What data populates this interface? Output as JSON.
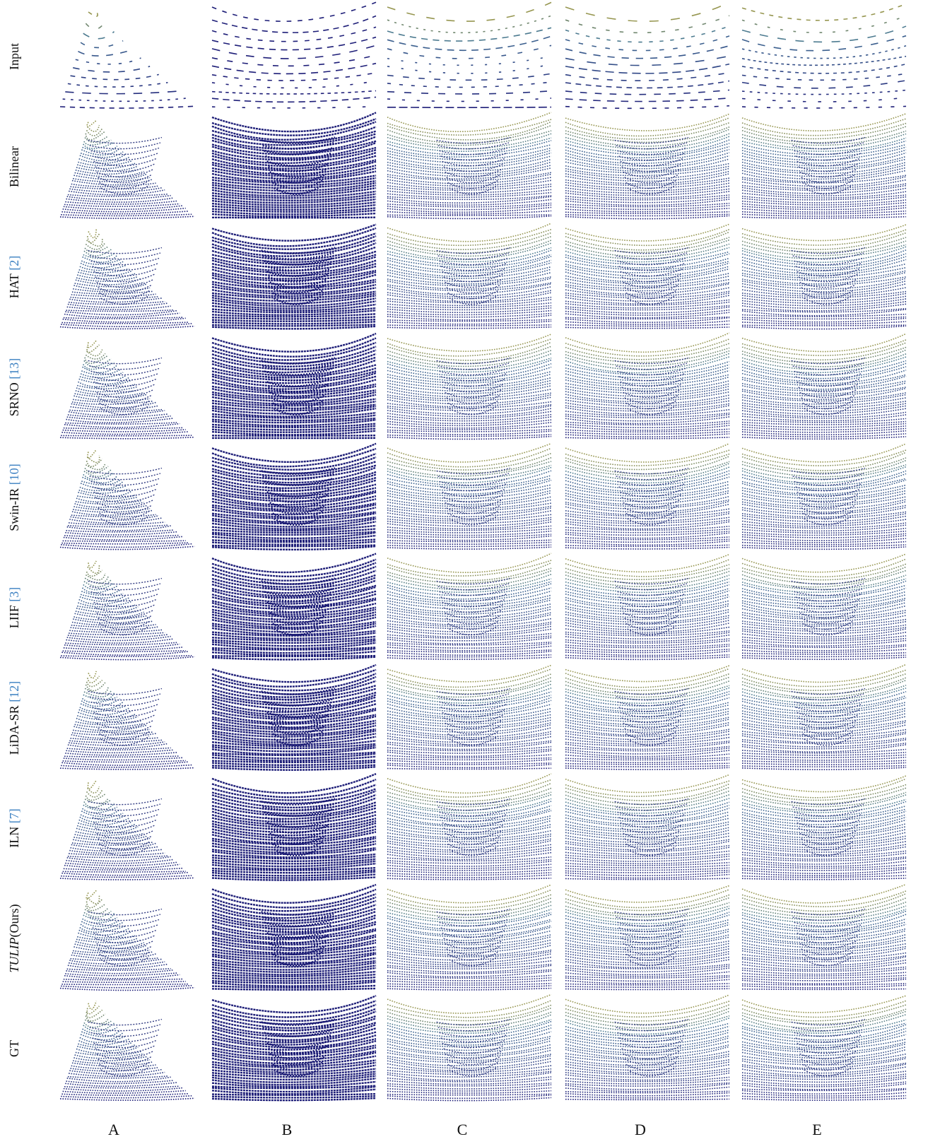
{
  "figure": {
    "rows": [
      {
        "label": "Input"
      },
      {
        "label": "Bilinear"
      },
      {
        "label": "HAT",
        "cite": "[2]"
      },
      {
        "label": "SRNO",
        "cite": "[13]"
      },
      {
        "label": "Swin-IR",
        "cite": "[10]"
      },
      {
        "label": "LIIF",
        "cite": "[3]"
      },
      {
        "label": "LiDA-SR",
        "cite": "[12]"
      },
      {
        "label": "ILN",
        "cite": "[7]"
      },
      {
        "label_italic": "TULIP",
        "label": "(Ours)"
      },
      {
        "label": "GT"
      }
    ],
    "columns": [
      "A",
      "B",
      "C",
      "D",
      "E"
    ]
  }
}
